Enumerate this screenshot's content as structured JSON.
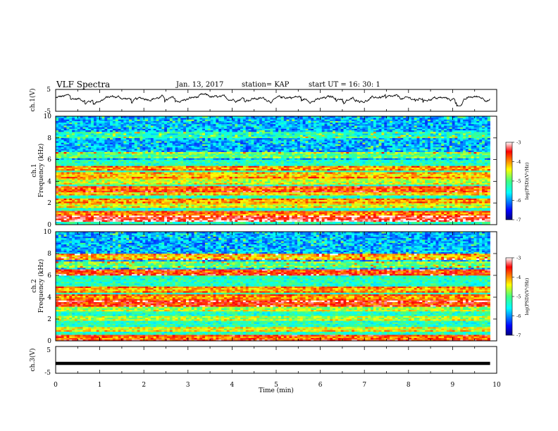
{
  "header": {
    "title": "VLF Spectra",
    "date": "Jan. 13, 2017",
    "station": "station= KAP",
    "start": "start  UT =   16: 30: 1"
  },
  "chart_data": [
    {
      "type": "line",
      "panel": "ch1-waveform",
      "ylabel": "ch.1(V)",
      "ylim": [
        -5,
        5
      ],
      "yticks": [
        "5",
        "-5"
      ],
      "xlim": [
        0,
        10
      ],
      "x_end": 9.85,
      "series_color": "#000000",
      "trace_kind": "noisy amplitude fluctuating around ~1 V"
    },
    {
      "type": "heatmap",
      "panel": "ch1-spectrogram",
      "ylabel": "ch.1\nFrequency (kHz)",
      "ylabel_top": "ch.1",
      "ylabel_bottom": "Frequency (kHz)",
      "ylim": [
        0,
        10
      ],
      "yticks": [
        "0",
        "2",
        "4",
        "6",
        "8",
        "10"
      ],
      "xlim": [
        0,
        10
      ],
      "x_end": 9.85,
      "bands_khz": [
        {
          "f": 0.6,
          "level": -3.6
        },
        {
          "f": 1.0,
          "level": -4.1
        },
        {
          "f": 1.8,
          "level": -4.6
        },
        {
          "f": 2.2,
          "level": -4.2
        },
        {
          "f": 2.9,
          "level": -4.4
        },
        {
          "f": 3.3,
          "level": -4.0
        },
        {
          "f": 4.0,
          "level": -4.8
        },
        {
          "f": 4.6,
          "level": -4.4
        },
        {
          "f": 5.2,
          "level": -4.2
        },
        {
          "f": 6.4,
          "level": -5.2
        },
        {
          "f": 8.3,
          "level": -5.6
        }
      ],
      "colorbar": {
        "label": "log(PSD)(V²/Hz)",
        "range": [
          -7,
          -3
        ],
        "ticks": [
          "-3",
          "-4",
          "-5",
          "-6",
          "-7"
        ]
      }
    },
    {
      "type": "heatmap",
      "panel": "ch2-spectrogram",
      "ylabel_top": "ch.2",
      "ylabel_bottom": "Frequency (kHz)",
      "ylim": [
        0,
        10
      ],
      "yticks": [
        "0",
        "2",
        "4",
        "6",
        "8",
        "10"
      ],
      "xlim": [
        0,
        10
      ],
      "x_end": 9.85,
      "bands_khz": [
        {
          "f": 0.3,
          "level": -4.0
        },
        {
          "f": 1.1,
          "level": -4.6
        },
        {
          "f": 2.1,
          "level": -4.8
        },
        {
          "f": 3.0,
          "level": -4.9
        },
        {
          "f": 3.4,
          "level": -3.8
        },
        {
          "f": 4.0,
          "level": -4.2
        },
        {
          "f": 4.7,
          "level": -4.3
        },
        {
          "f": 6.3,
          "level": -3.9
        },
        {
          "f": 7.0,
          "level": -5.2
        },
        {
          "f": 7.7,
          "level": -4.4
        }
      ],
      "colorbar": {
        "label": "log(PSD)(V²/Hz)",
        "range": [
          -7,
          -3
        ],
        "ticks": [
          "-3",
          "-4",
          "-5",
          "-6",
          "-7"
        ]
      }
    },
    {
      "type": "line",
      "panel": "ch3-waveform",
      "ylabel": "ch.3(V)",
      "ylim": [
        -5,
        5
      ],
      "yticks": [
        "5",
        "-5"
      ],
      "xlim": [
        0,
        10
      ],
      "x_end": 9.85,
      "constant_value": -1.3,
      "series_color": "#000000"
    }
  ],
  "xaxis": {
    "label": "Time (min)",
    "ticks": [
      "0",
      "1",
      "2",
      "3",
      "4",
      "5",
      "6",
      "7",
      "8",
      "9",
      "10"
    ]
  }
}
